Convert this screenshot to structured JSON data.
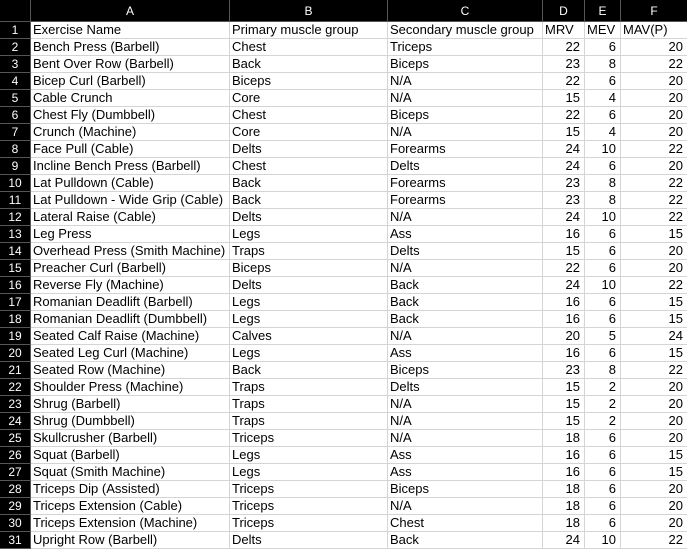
{
  "columns": [
    "A",
    "B",
    "C",
    "D",
    "E",
    "F"
  ],
  "header": [
    "Exercise Name",
    "Primary muscle group",
    "Secondary muscle group",
    "MRV",
    "MEV",
    "MAV(P)"
  ],
  "rows": [
    [
      "Bench Press (Barbell)",
      "Chest",
      "Triceps",
      "22",
      "6",
      "20"
    ],
    [
      "Bent Over Row (Barbell)",
      "Back",
      "Biceps",
      "23",
      "8",
      "22"
    ],
    [
      "Bicep Curl (Barbell)",
      "Biceps",
      "N/A",
      "22",
      "6",
      "20"
    ],
    [
      "Cable Crunch",
      "Core",
      "N/A",
      "15",
      "4",
      "20"
    ],
    [
      "Chest Fly (Dumbbell)",
      "Chest",
      "Biceps",
      "22",
      "6",
      "20"
    ],
    [
      "Crunch (Machine)",
      "Core",
      "N/A",
      "15",
      "4",
      "20"
    ],
    [
      "Face Pull (Cable)",
      "Delts",
      "Forearms",
      "24",
      "10",
      "22"
    ],
    [
      "Incline Bench Press (Barbell)",
      "Chest",
      "Delts",
      "24",
      "6",
      "20"
    ],
    [
      "Lat Pulldown (Cable)",
      "Back",
      "Forearms",
      "23",
      "8",
      "22"
    ],
    [
      "Lat Pulldown - Wide Grip (Cable)",
      "Back",
      "Forearms",
      "23",
      "8",
      "22"
    ],
    [
      "Lateral Raise (Cable)",
      "Delts",
      "N/A",
      "24",
      "10",
      "22"
    ],
    [
      "Leg Press",
      "Legs",
      "Ass",
      "16",
      "6",
      "15"
    ],
    [
      "Overhead Press (Smith Machine)",
      "Traps",
      "Delts",
      "15",
      "6",
      "20"
    ],
    [
      "Preacher Curl (Barbell)",
      "Biceps",
      "N/A",
      "22",
      "6",
      "20"
    ],
    [
      "Reverse Fly (Machine)",
      "Delts",
      "Back",
      "24",
      "10",
      "22"
    ],
    [
      "Romanian Deadlift (Barbell)",
      "Legs",
      "Back",
      "16",
      "6",
      "15"
    ],
    [
      "Romanian Deadlift (Dumbbell)",
      "Legs",
      "Back",
      "16",
      "6",
      "15"
    ],
    [
      "Seated Calf Raise (Machine)",
      "Calves",
      "N/A",
      "20",
      "5",
      "24"
    ],
    [
      "Seated Leg Curl (Machine)",
      "Legs",
      "Ass",
      "16",
      "6",
      "15"
    ],
    [
      "Seated Row (Machine)",
      "Back",
      "Biceps",
      "23",
      "8",
      "22"
    ],
    [
      "Shoulder Press (Machine)",
      "Traps",
      "Delts",
      "15",
      "2",
      "20"
    ],
    [
      "Shrug (Barbell)",
      "Traps",
      "N/A",
      "15",
      "2",
      "20"
    ],
    [
      "Shrug (Dumbbell)",
      "Traps",
      "N/A",
      "15",
      "2",
      "20"
    ],
    [
      "Skullcrusher (Barbell)",
      "Triceps",
      "N/A",
      "18",
      "6",
      "20"
    ],
    [
      "Squat (Barbell)",
      "Legs",
      "Ass",
      "16",
      "6",
      "15"
    ],
    [
      "Squat (Smith Machine)",
      "Legs",
      "Ass",
      "16",
      "6",
      "15"
    ],
    [
      "Triceps Dip (Assisted)",
      "Triceps",
      "Biceps",
      "18",
      "6",
      "20"
    ],
    [
      "Triceps Extension (Cable)",
      "Triceps",
      "N/A",
      "18",
      "6",
      "20"
    ],
    [
      "Triceps Extension (Machine)",
      "Triceps",
      "Chest",
      "18",
      "6",
      "20"
    ],
    [
      "Upright Row (Barbell)",
      "Delts",
      "Back",
      "24",
      "10",
      "22"
    ]
  ]
}
